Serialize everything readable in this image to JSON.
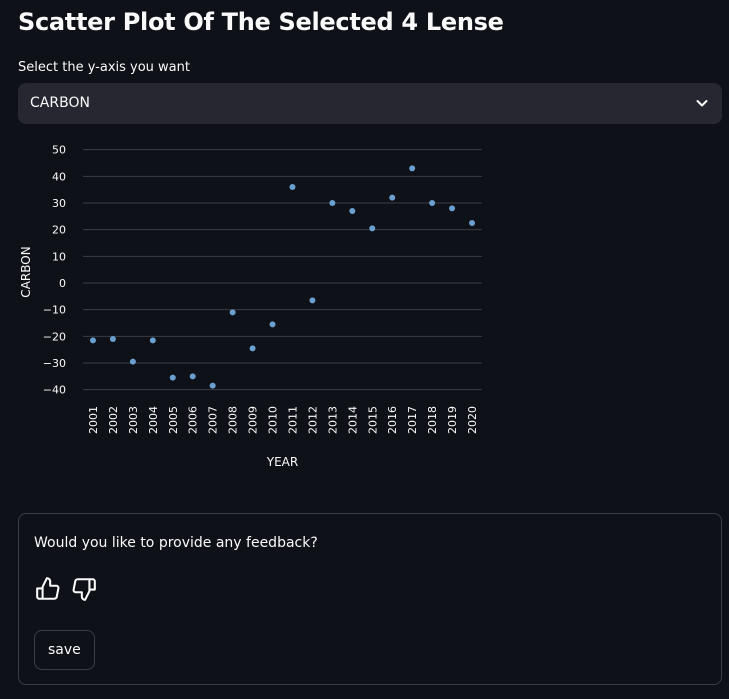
{
  "page": {
    "title": "Scatter Plot Of The Selected 4 Lense"
  },
  "y_axis_select": {
    "label": "Select the y-axis you want",
    "selected_value": "CARBON",
    "icon": "chevron-down-icon"
  },
  "chart_data": {
    "type": "scatter",
    "title": "",
    "xlabel": "YEAR",
    "ylabel": "CARBON",
    "x": [
      "2001",
      "2002",
      "2003",
      "2004",
      "2005",
      "2006",
      "2007",
      "2008",
      "2009",
      "2010",
      "2011",
      "2012",
      "2013",
      "2014",
      "2015",
      "2016",
      "2017",
      "2018",
      "2019",
      "2020"
    ],
    "y": [
      -21.5,
      -21,
      -29.5,
      -21.5,
      -35.5,
      -35,
      -38.5,
      -11,
      -24.5,
      -15.5,
      36,
      -6.5,
      30,
      27,
      20.5,
      32,
      43,
      30,
      28,
      22.5
    ],
    "y_ticks": [
      -40,
      -30,
      -20,
      -10,
      0,
      10,
      20,
      30,
      40,
      50
    ],
    "ylim": [
      -42,
      51
    ],
    "grid": true,
    "point_color": "#6a9fd0",
    "grid_color": "#3a3d45"
  },
  "feedback": {
    "question": "Would you like to provide any feedback?",
    "thumbs_up_icon": "thumbs-up-icon",
    "thumbs_down_icon": "thumbs-down-icon",
    "save_label": "save"
  }
}
